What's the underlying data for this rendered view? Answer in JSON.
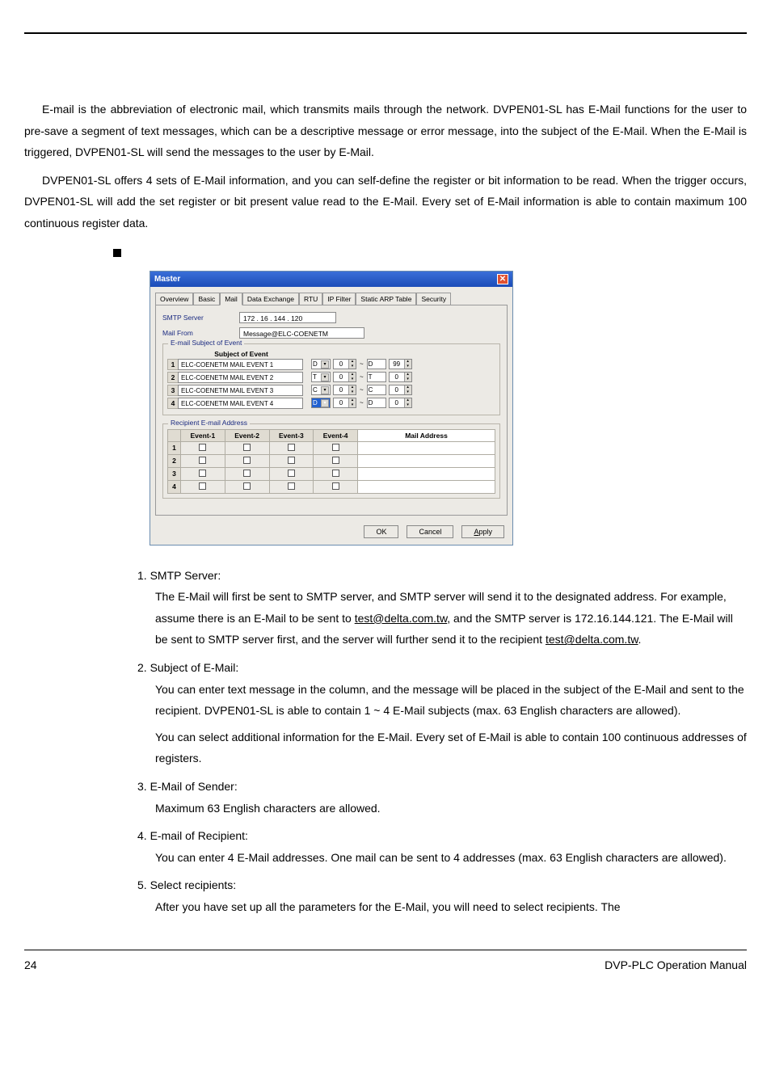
{
  "intro": {
    "p1": "E-mail is the abbreviation of electronic mail, which transmits mails through the network. DVPEN01-SL has E-Mail functions for the user to pre-save a segment of text messages, which can be a descriptive message or error message, into the subject of the E-Mail. When the E-Mail is triggered, DVPEN01-SL will send the messages to the user by E-Mail.",
    "p2": "DVPEN01-SL offers 4 sets of E-Mail information, and you can self-define the register or bit information to be read. When the trigger occurs, DVPEN01-SL will add the set register or bit present value read to the E-Mail. Every set of E-Mail information is able to contain maximum 100 continuous register data."
  },
  "dialog": {
    "title": "Master",
    "tabs": [
      "Overview",
      "Basic",
      "Mail",
      "Data Exchange",
      "RTU",
      "IP Filter",
      "Static ARP Table",
      "Security"
    ],
    "active_tab": "Mail",
    "smtp_label": "SMTP Server",
    "smtp_value": "172  .  16  . 144 . 120",
    "from_label": "Mail From",
    "from_value": "Message@ELC-COENETM",
    "subject_group": "E-mail Subject of Event",
    "subject_head": "Subject of Event",
    "events": [
      {
        "n": "1",
        "subject": "ELC-COENETM MAIL EVENT 1",
        "a": "D",
        "b": "0",
        "c": "D",
        "d": "99"
      },
      {
        "n": "2",
        "subject": "ELC-COENETM MAIL EVENT 2",
        "a": "T",
        "b": "0",
        "c": "T",
        "d": "0"
      },
      {
        "n": "3",
        "subject": "ELC-COENETM MAIL EVENT 3",
        "a": "C",
        "b": "0",
        "c": "C",
        "d": "0"
      },
      {
        "n": "4",
        "subject": "ELC-COENETM MAIL EVENT 4",
        "a": "D",
        "b": "0",
        "c": "D",
        "d": "0",
        "selected": true
      }
    ],
    "recip_group": "Recipient E-mail Address",
    "recip_headers": [
      "Event-1",
      "Event-2",
      "Event-3",
      "Event-4",
      "Mail Address"
    ],
    "recip_rows": [
      "1",
      "2",
      "3",
      "4"
    ],
    "buttons": {
      "ok": "OK",
      "cancel": "Cancel",
      "apply": "Apply"
    }
  },
  "items": {
    "i1_title": "1. SMTP Server:",
    "i1_body_a": "The E-Mail will first be sent to SMTP server, and SMTP server will send it to the designated address. For example, assume there is an E-Mail to be sent to ",
    "i1_link1": "test@delta.com.tw",
    "i1_body_b": ", and the SMTP server is 172.16.144.121. The E-Mail will be sent to SMTP server first, and the server will further send it to the recipient ",
    "i1_link2": "test@delta.com.tw",
    "i1_body_c": ".",
    "i2_title": "2. Subject of E-Mail:",
    "i2_body_a": "You can enter text message in the column, and the message will be placed in the subject of the E-Mail and sent to the recipient. DVPEN01-SL is able to contain 1 ~ 4 E-Mail subjects (max. 63 English characters are allowed).",
    "i2_body_b": "You can select additional information for the E-Mail. Every set of E-Mail is able to contain 100 continuous addresses of registers.",
    "i3_title": "3.  E-Mail of Sender:",
    "i3_body": "Maximum 63 English characters are allowed.",
    "i4_title": "4.  E-mail of Recipient:",
    "i4_body": "You can enter 4 E-Mail addresses. One mail can be sent to 4 addresses (max. 63 English characters are allowed).",
    "i5_title": "5.  Select recipients:",
    "i5_body": "After you have set up all the parameters for the E-Mail, you will need to select recipients. The"
  },
  "footer": {
    "page": "24",
    "manual": "DVP-PLC  Operation  Manual"
  }
}
